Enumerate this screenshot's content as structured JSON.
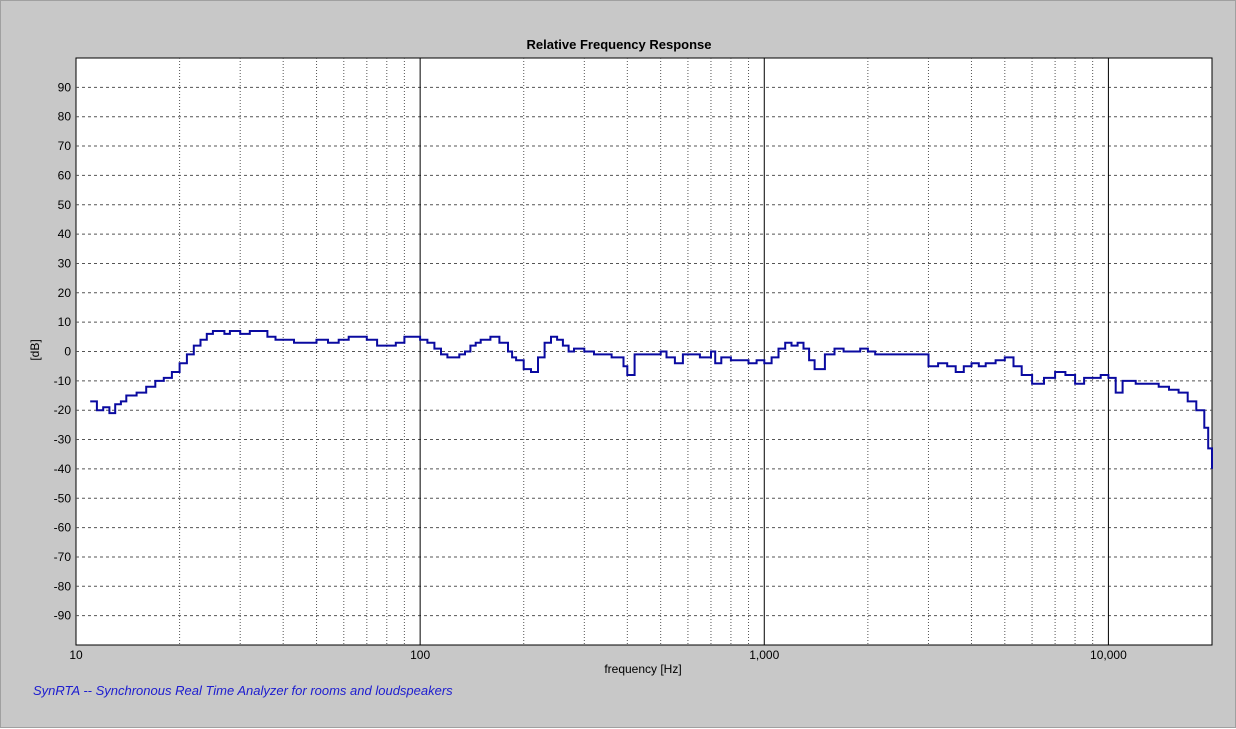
{
  "footer_text": "SynRTA -- Synchronous Real Time Analyzer for rooms and loudspeakers",
  "chart_data": {
    "type": "line",
    "title": "Relative Frequency Response",
    "xlabel": "frequency [Hz]",
    "ylabel": "[dB]",
    "xscale": "log",
    "xlim": [
      10,
      20000
    ],
    "ylim": [
      -100,
      100
    ],
    "grid": true,
    "line_color": "#0a0aa0",
    "x_tick_labels": [
      {
        "value": 10,
        "label": "10"
      },
      {
        "value": 100,
        "label": "100"
      },
      {
        "value": 1000,
        "label": "1,000"
      },
      {
        "value": 10000,
        "label": "10,000"
      }
    ],
    "y_ticks": [
      90,
      80,
      70,
      60,
      50,
      40,
      30,
      20,
      10,
      0,
      -10,
      -20,
      -30,
      -40,
      -50,
      -60,
      -70,
      -80,
      -90
    ],
    "series": [
      {
        "x": [
          11,
          11.5,
          12,
          12.5,
          13,
          13.5,
          14,
          15,
          16,
          17,
          18,
          19,
          20,
          21,
          22,
          23,
          24,
          25,
          26,
          27,
          28,
          29,
          30,
          32,
          34,
          36,
          38,
          40,
          43,
          46,
          50,
          54,
          58,
          62,
          66,
          70,
          75,
          80,
          85,
          90,
          95,
          100,
          105,
          110,
          115,
          120,
          125,
          130,
          135,
          140,
          145,
          150,
          160,
          170,
          180,
          185,
          190,
          200,
          210,
          220,
          230,
          240,
          250,
          260,
          270,
          280,
          300,
          320,
          340,
          360,
          380,
          390,
          400,
          420,
          450,
          480,
          500,
          520,
          550,
          580,
          600,
          650,
          700,
          720,
          750,
          800,
          850,
          900,
          950,
          1000,
          1050,
          1100,
          1150,
          1200,
          1250,
          1300,
          1350,
          1400,
          1500,
          1600,
          1700,
          1800,
          1900,
          2000,
          2100,
          2200,
          2400,
          2600,
          2800,
          3000,
          3200,
          3400,
          3600,
          3800,
          4000,
          4200,
          4400,
          4700,
          5000,
          5300,
          5600,
          6000,
          6500,
          7000,
          7500,
          8000,
          8500,
          9000,
          9500,
          10000,
          10500,
          11000,
          12000,
          13000,
          14000,
          15000,
          16000,
          17000,
          18000,
          19000,
          19500,
          20000
        ],
        "y": [
          -17,
          -20,
          -19,
          -21,
          -18,
          -17,
          -15,
          -14,
          -12,
          -10,
          -9,
          -7,
          -4,
          -1,
          2,
          4,
          6,
          7,
          7,
          6,
          7,
          7,
          6,
          7,
          7,
          5,
          4,
          4,
          3,
          3,
          4,
          3,
          4,
          5,
          5,
          4,
          2,
          2,
          3,
          5,
          5,
          4,
          3,
          1,
          -1,
          -2,
          -2,
          -1,
          0,
          2,
          3,
          4,
          5,
          3,
          0,
          -2,
          -3,
          -6,
          -7,
          -2,
          3,
          5,
          4,
          2,
          0,
          1,
          0,
          -1,
          -1,
          -2,
          -2,
          -5,
          -8,
          -1,
          -1,
          -1,
          0,
          -2,
          -4,
          -1,
          -1,
          -2,
          0,
          -4,
          -2,
          -3,
          -3,
          -4,
          -3,
          -4,
          -2,
          1,
          3,
          2,
          3,
          1,
          -3,
          -6,
          -1,
          1,
          0,
          0,
          1,
          0,
          -1,
          -1,
          -1,
          -1,
          -1,
          -5,
          -4,
          -5,
          -7,
          -5,
          -4,
          -5,
          -4,
          -3,
          -2,
          -5,
          -8,
          -11,
          -9,
          -7,
          -8,
          -11,
          -9,
          -9,
          -8,
          -9,
          -14,
          -10,
          -11,
          -11,
          -12,
          -13,
          -14,
          -17,
          -20,
          -26,
          -33,
          -40
        ]
      }
    ]
  }
}
